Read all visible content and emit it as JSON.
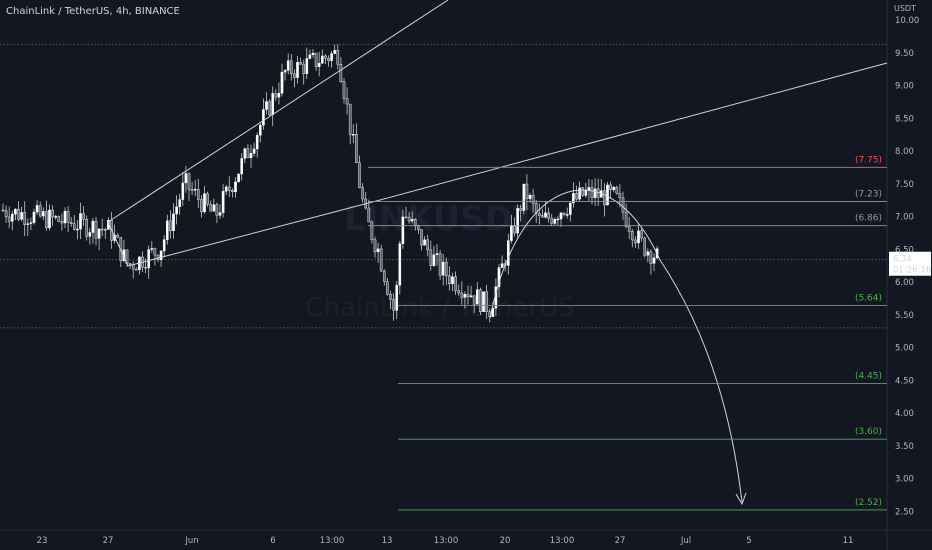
{
  "header": {
    "title": "ChainLink / TetherUS, 4h, BINANCE"
  },
  "axis_unit": "USDT",
  "price_tag": {
    "price": "6.34",
    "countdown": "01:26:16"
  },
  "watermark": {
    "symbol": "LINKUSDT",
    "name": "ChainLink / TetherUS"
  },
  "colors": {
    "background": "#131722",
    "up_candle": "#ffffff",
    "down_candle": "#ffffff",
    "resistance": "#ef5350",
    "targets": "#26a69a",
    "target_text": "#4caf50",
    "trendline": "#d1d4dc"
  },
  "chart_data": {
    "type": "candlestick",
    "title": "ChainLink / TetherUS, 4h, BINANCE",
    "ylabel": "USDT",
    "ylim": [
      2.35,
      10.1
    ],
    "yticks": [
      "10.00",
      "9.50",
      "9.00",
      "8.50",
      "8.00",
      "7.50",
      "7.00",
      "6.50",
      "6.00",
      "5.50",
      "5.00",
      "4.50",
      "4.00",
      "3.50",
      "3.00",
      "2.50"
    ],
    "xticks": [
      "23",
      "27",
      "Jun",
      "6",
      "13:00",
      "13",
      "13:00",
      "20",
      "13:00",
      "27",
      "Jul",
      "5",
      "11"
    ],
    "anchors": [
      {
        "x": "23",
        "y": 7.1
      },
      {
        "x": "27",
        "y": 6.8
      },
      {
        "x": "27",
        "y": 6.25
      },
      {
        "x": "Jun",
        "y": 6.5
      },
      {
        "x": "Jun",
        "y": 7.5
      },
      {
        "x": "6",
        "y": 7.0
      },
      {
        "x": "6",
        "y": 7.9
      },
      {
        "x": "13:00",
        "y": 9.2
      },
      {
        "x": "13:00",
        "y": 9.5
      },
      {
        "x": "13",
        "y": 7.0
      },
      {
        "x": "13",
        "y": 6.5
      },
      {
        "x": "13",
        "y": 5.5
      },
      {
        "x": "13:00",
        "y": 7.1
      },
      {
        "x": "13:00",
        "y": 6.2
      },
      {
        "x": "20",
        "y": 5.6
      },
      {
        "x": "20",
        "y": 7.4
      },
      {
        "x": "13:00",
        "y": 6.9
      },
      {
        "x": "13:00",
        "y": 7.35
      },
      {
        "x": "27",
        "y": 7.3
      },
      {
        "x": "27",
        "y": 6.6
      },
      {
        "x": "27",
        "y": 6.34
      }
    ],
    "last_price": 6.34,
    "levels": [
      {
        "label": "(7.75)",
        "value": 7.75,
        "color": "#ef5350"
      },
      {
        "label": "(7.23)",
        "value": 7.23,
        "color": "#9598a1"
      },
      {
        "label": "(6.86)",
        "value": 6.86,
        "color": "#9598a1"
      },
      {
        "label": "(5.64)",
        "value": 5.64,
        "color": "#4caf50"
      },
      {
        "label": "(4.45)",
        "value": 4.45,
        "color": "#4caf50"
      },
      {
        "label": "(3.60)",
        "value": 3.6,
        "color": "#4caf50"
      },
      {
        "label": "(2.52)",
        "value": 2.52,
        "color": "#4caf50"
      }
    ],
    "grid": false,
    "legend": "none"
  }
}
